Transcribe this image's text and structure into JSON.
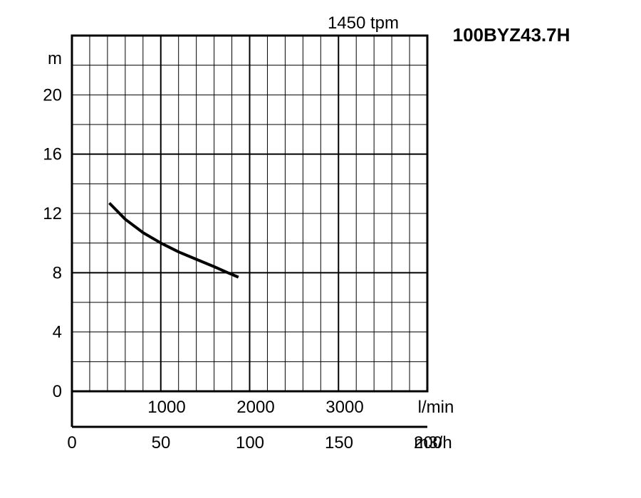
{
  "chart_data": {
    "type": "line",
    "title": "100BYZ43.7H",
    "subtitle": "1450 tpm",
    "ylabel": "m",
    "ylim": [
      0,
      24
    ],
    "y_ticks": [
      0,
      4,
      8,
      12,
      16,
      20
    ],
    "xlabel_primary": "l/min",
    "xlim_primary": [
      0,
      3000
    ],
    "x_ticks_primary": [
      1000,
      2000,
      3000
    ],
    "xlabel_secondary": "m3/h",
    "xlim_secondary": [
      0,
      180
    ],
    "x_ticks_secondary": [
      0,
      50,
      100,
      150,
      200
    ],
    "grid": true,
    "series": [
      {
        "color": "#000000",
        "x": [
          420,
          600,
          800,
          1000,
          1200,
          1400,
          1600,
          1750,
          1870
        ],
        "y": [
          12.7,
          11.6,
          10.7,
          10.0,
          9.4,
          8.9,
          8.4,
          8.0,
          7.7
        ]
      }
    ]
  }
}
